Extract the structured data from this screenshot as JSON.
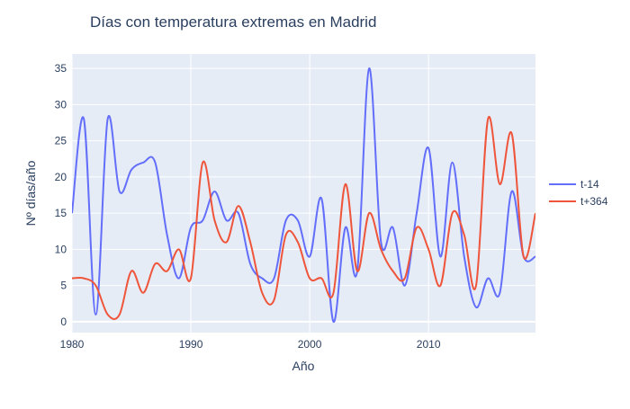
{
  "chart_data": {
    "type": "line",
    "title": "Días con temperatura extremas en Madrid",
    "xlabel": "Año",
    "ylabel": "Nº días/año",
    "xlim": [
      1980,
      2019
    ],
    "ylim": [
      -1.5,
      37
    ],
    "xticks": [
      1980,
      1990,
      2000,
      2010
    ],
    "yticks": [
      0,
      5,
      10,
      15,
      20,
      25,
      30,
      35
    ],
    "grid": true,
    "legend_position": "right",
    "plot_background": "#e5ecf6",
    "series": [
      {
        "name": "t-14",
        "color": "#636efa",
        "x": [
          1980,
          1981,
          1982,
          1983,
          1984,
          1985,
          1986,
          1987,
          1988,
          1989,
          1990,
          1991,
          1992,
          1993,
          1994,
          1995,
          1996,
          1997,
          1998,
          1999,
          2000,
          2001,
          2002,
          2003,
          2004,
          2005,
          2006,
          2007,
          2008,
          2009,
          2010,
          2011,
          2012,
          2013,
          2014,
          2015,
          2016,
          2017,
          2018,
          2019
        ],
        "y": [
          15,
          28,
          1,
          28,
          18,
          21,
          22,
          22,
          12,
          6,
          13,
          14,
          18,
          14,
          15,
          8,
          6,
          6,
          14,
          14,
          9,
          17,
          0,
          13,
          7,
          35,
          11,
          13,
          5,
          15,
          24,
          9,
          22,
          9,
          2,
          6,
          4,
          18,
          9,
          9
        ]
      },
      {
        "name": "t+364",
        "color": "#ef553b",
        "x": [
          1980,
          1981,
          1982,
          1983,
          1984,
          1985,
          1986,
          1987,
          1988,
          1989,
          1990,
          1991,
          1992,
          1993,
          1994,
          1995,
          1996,
          1997,
          1998,
          1999,
          2000,
          2001,
          2002,
          2003,
          2004,
          2005,
          2006,
          2007,
          2008,
          2009,
          2010,
          2011,
          2012,
          2013,
          2014,
          2015,
          2016,
          2017,
          2018,
          2019
        ],
        "y": [
          6,
          6,
          5,
          1,
          1,
          7,
          4,
          8,
          7,
          10,
          6,
          22,
          14,
          11,
          16,
          11,
          4,
          3,
          12,
          11,
          6,
          6,
          4,
          19,
          7,
          15,
          10,
          7,
          6,
          13,
          10,
          5,
          15,
          12,
          5,
          28,
          19,
          26,
          9,
          15
        ]
      }
    ]
  }
}
